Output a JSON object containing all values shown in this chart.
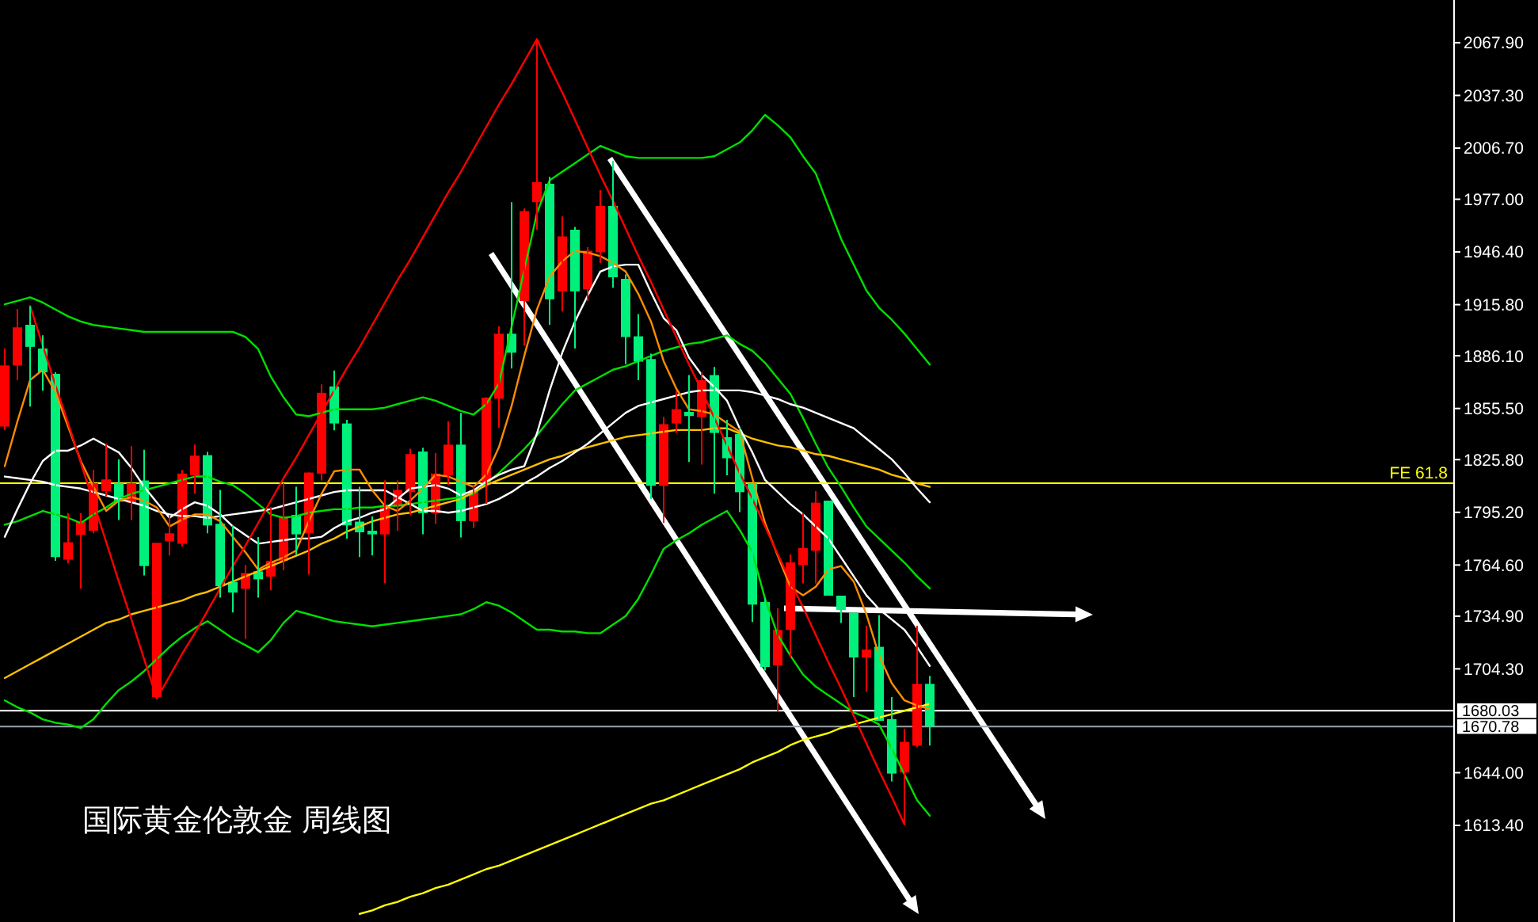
{
  "chart_data": {
    "type": "candlestick",
    "title": "国际黄金伦敦金 周线图",
    "categories": [
      null,
      null,
      null,
      null,
      null,
      null,
      null,
      null,
      null,
      null,
      null,
      null,
      null,
      null,
      null,
      null,
      null,
      null,
      null,
      null,
      null,
      null,
      null,
      null,
      null,
      null,
      null,
      null,
      null,
      null,
      null,
      null,
      null,
      null,
      null,
      null,
      null,
      null,
      null,
      null,
      null,
      null,
      null,
      null,
      null,
      null,
      null,
      null,
      null,
      null,
      null,
      null,
      null,
      null,
      null,
      null,
      null,
      null,
      null,
      null,
      null,
      null,
      null,
      null,
      null,
      null,
      null,
      null,
      null,
      null,
      null,
      null,
      null,
      null
    ],
    "ohlc": [
      [
        1845.0,
        1890.3,
        1842.8,
        1880.5
      ],
      [
        1880.5,
        1913.3,
        1871.9,
        1902.6
      ],
      [
        1904.1,
        1914.9,
        1856.6,
        1891.3
      ],
      [
        1890.3,
        1898.0,
        1865.8,
        1876.5
      ],
      [
        1875.6,
        1876.5,
        1767.1,
        1769.2
      ],
      [
        1767.7,
        1794.7,
        1765.5,
        1777.8
      ],
      [
        1782.1,
        1794.7,
        1750.8,
        1789.8
      ],
      [
        1784.5,
        1819.8,
        1783.0,
        1812.1
      ],
      [
        1807.5,
        1835.1,
        1804.5,
        1814.3
      ],
      [
        1812.1,
        1825.9,
        1790.7,
        1801.4
      ],
      [
        1800.8,
        1833.6,
        1790.7,
        1812.1
      ],
      [
        1813.7,
        1831.5,
        1758.5,
        1764.0
      ],
      [
        1687.9,
        1777.5,
        1687.0,
        1777.5
      ],
      [
        1778.4,
        1792.8,
        1770.1,
        1783.0
      ],
      [
        1776.9,
        1819.8,
        1775.3,
        1817.7
      ],
      [
        1816.7,
        1834.5,
        1806.0,
        1828.1
      ],
      [
        1828.4,
        1830.3,
        1783.0,
        1787.6
      ],
      [
        1788.5,
        1808.2,
        1745.6,
        1752.3
      ],
      [
        1754.8,
        1787.6,
        1737.0,
        1748.6
      ],
      [
        1750.8,
        1764.6,
        1721.7,
        1759.9
      ],
      [
        1760.9,
        1780.9,
        1745.6,
        1756.3
      ],
      [
        1757.9,
        1798.3,
        1749.9,
        1767.1
      ],
      [
        1767.1,
        1812.1,
        1761.5,
        1792.8
      ],
      [
        1793.7,
        1810.0,
        1770.7,
        1782.4
      ],
      [
        1783.0,
        1818.3,
        1759.1,
        1818.3
      ],
      [
        1817.7,
        1869.5,
        1813.7,
        1864.6
      ],
      [
        1868.3,
        1877.5,
        1842.8,
        1846.8
      ],
      [
        1846.8,
        1848.9,
        1779.9,
        1787.6
      ],
      [
        1789.8,
        1810.0,
        1769.2,
        1783.6
      ],
      [
        1784.5,
        1792.8,
        1770.1,
        1782.4
      ],
      [
        1782.4,
        1813.7,
        1753.9,
        1798.3
      ],
      [
        1799.0,
        1813.7,
        1784.5,
        1808.2
      ],
      [
        1806.9,
        1832.1,
        1793.7,
        1829.0
      ],
      [
        1830.5,
        1832.7,
        1782.4,
        1794.7
      ],
      [
        1794.7,
        1829.6,
        1788.5,
        1817.7
      ],
      [
        1816.7,
        1848.0,
        1811.2,
        1834.5
      ],
      [
        1834.5,
        1852.9,
        1780.6,
        1790.1
      ],
      [
        1790.1,
        1811.2,
        1786.1,
        1808.2
      ],
      [
        1812.1,
        1862.0,
        1800.2,
        1861.8
      ],
      [
        1861.2,
        1903.2,
        1844.3,
        1898.9
      ],
      [
        1898.9,
        1975.3,
        1878.7,
        1887.9
      ],
      [
        1917.9,
        1971.6,
        1891.9,
        1970.1
      ],
      [
        1975.3,
        2070.0,
        1959.3,
        1986.9
      ],
      [
        1986.0,
        1990.0,
        1904.1,
        1918.9
      ],
      [
        1923.5,
        1967.0,
        1911.8,
        1955.4
      ],
      [
        1959.3,
        1960.9,
        1890.3,
        1923.5
      ],
      [
        1924.7,
        1949.2,
        1917.9,
        1947.1
      ],
      [
        1946.2,
        1982.3,
        1940.0,
        1973.1
      ],
      [
        1973.1,
        1999.2,
        1925.6,
        1931.7
      ],
      [
        1930.8,
        1933.3,
        1881.1,
        1897.0
      ],
      [
        1897.4,
        1910.3,
        1871.9,
        1882.7
      ],
      [
        1884.2,
        1887.3,
        1802.9,
        1810.6
      ],
      [
        1810.6,
        1850.5,
        1789.1,
        1846.4
      ],
      [
        1846.8,
        1865.8,
        1841.3,
        1855.1
      ],
      [
        1853.5,
        1874.9,
        1824.4,
        1851.1
      ],
      [
        1850.5,
        1876.5,
        1822.9,
        1871.9
      ],
      [
        1874.9,
        1879.6,
        1806.0,
        1841.3
      ],
      [
        1838.8,
        1848.9,
        1816.7,
        1826.6
      ],
      [
        1840.7,
        1844.3,
        1795.3,
        1806.9
      ],
      [
        1812.1,
        1812.1,
        1731.5,
        1741.6
      ],
      [
        1743.1,
        1745.6,
        1703.3,
        1705.4
      ],
      [
        1706.3,
        1739.5,
        1679.4,
        1726.9
      ],
      [
        1726.9,
        1770.7,
        1710.9,
        1766.1
      ],
      [
        1764.6,
        1794.7,
        1753.9,
        1774.4
      ],
      [
        1772.9,
        1807.5,
        1753.9,
        1800.8
      ],
      [
        1802.0,
        1802.0,
        1746.8,
        1746.8
      ],
      [
        1746.8,
        1746.8,
        1730.9,
        1738.5
      ],
      [
        1736.9,
        1736.9,
        1687.9,
        1710.9
      ],
      [
        1710.9,
        1729.3,
        1691.0,
        1715.5
      ],
      [
        1717.1,
        1735.5,
        1674.1,
        1674.1
      ],
      [
        1675.1,
        1687.9,
        1638.9,
        1643.5
      ],
      [
        1644.1,
        1669.5,
        1614.3,
        1661.9
      ],
      [
        1659.7,
        1729.3,
        1658.8,
        1695.6
      ],
      [
        1695.6,
        1700.2,
        1659.7,
        1670.8
      ]
    ],
    "colors": [
      "#ff0000",
      "#ff0000",
      "#00f07c",
      "#00f07c",
      "#00f07c",
      "#ff0000",
      "#ff0000",
      "#ff0000",
      "#ff0000",
      "#00f07c",
      "#ff0000",
      "#00f07c",
      "#ff0000",
      "#ff0000",
      "#ff0000",
      "#ff0000",
      "#00f07c",
      "#00f07c",
      "#00f07c",
      "#ff0000",
      "#00f07c",
      "#ff0000",
      "#ff0000",
      "#00f07c",
      "#ff0000",
      "#ff0000",
      "#00f07c",
      "#00f07c",
      "#00f07c",
      "#00f07c",
      "#ff0000",
      "#ff0000",
      "#ff0000",
      "#00f07c",
      "#ff0000",
      "#ff0000",
      "#00f07c",
      "#ff0000",
      "#ff0000",
      "#ff0000",
      "#00f07c",
      "#ff0000",
      "#ff0000",
      "#00f07c",
      "#ff0000",
      "#00f07c",
      "#ff0000",
      "#ff0000",
      "#00f07c",
      "#00f07c",
      "#00f07c",
      "#00f07c",
      "#ff0000",
      "#ff0000",
      "#00f07c",
      "#ff0000",
      "#00f07c",
      "#00f07c",
      "#00f07c",
      "#00f07c",
      "#00f07c",
      "#ff0000",
      "#ff0000",
      "#ff0000",
      "#ff0000",
      "#00f07c",
      "#00f07c",
      "#00f07c",
      "#ff0000",
      "#00f07c",
      "#00f07c",
      "#ff0000",
      "#ff0000",
      "#00f07c"
    ],
    "series": [
      {
        "type": "line",
        "color": "#00e000",
        "values": [
          1916,
          1918,
          1920,
          1917,
          1913,
          1909,
          1906,
          1904,
          1903,
          1902,
          1901,
          1900,
          1900,
          1900,
          1900,
          1900,
          1900,
          1900,
          1900,
          1897,
          1890,
          1874,
          1862,
          1852,
          1851,
          1853,
          1855,
          1855,
          1855,
          1855,
          1856,
          1858,
          1860,
          1862,
          1860,
          1857,
          1854,
          1852,
          1858,
          1870,
          1903,
          1936,
          1969,
          1988,
          1993,
          1998,
          2003,
          2008,
          2005,
          2002,
          2001,
          2001,
          2001,
          2001,
          2001,
          2001,
          2002,
          2006,
          2010,
          2017,
          2026,
          2020,
          2013,
          2002,
          1992,
          1973,
          1954,
          1939,
          1924,
          1914,
          1907,
          1899,
          1890,
          1881
        ]
      },
      {
        "type": "line",
        "color": "#00e000",
        "values": [
          1788,
          1790,
          1793,
          1796,
          1794,
          1792,
          1789,
          1794,
          1798,
          1803,
          1806,
          1808,
          1810,
          1812,
          1814,
          1816,
          1816,
          1813,
          1811,
          1806,
          1800,
          1794,
          1792,
          1793,
          1795,
          1796,
          1797,
          1797,
          1798,
          1798,
          1799,
          1799,
          1800,
          1801,
          1802,
          1803,
          1804,
          1806,
          1812,
          1818,
          1825,
          1832,
          1840,
          1849,
          1858,
          1866,
          1870,
          1874,
          1878,
          1880,
          1883,
          1886,
          1889,
          1891,
          1893,
          1894,
          1896,
          1898,
          1893,
          1889,
          1882,
          1873,
          1864,
          1850,
          1835,
          1821,
          1810,
          1798,
          1787,
          1780,
          1773,
          1766,
          1758,
          1751
        ]
      },
      {
        "type": "line",
        "color": "#00e000",
        "values": [
          1686,
          1682,
          1679,
          1675,
          1673,
          1672,
          1670,
          1675,
          1684,
          1692,
          1697,
          1703,
          1710,
          1717,
          1723,
          1728,
          1732,
          1727,
          1722,
          1718,
          1714,
          1721,
          1731,
          1738,
          1736,
          1734,
          1732,
          1731,
          1730,
          1729,
          1730,
          1731,
          1732,
          1733,
          1734,
          1735,
          1736,
          1739,
          1743,
          1741,
          1737,
          1732,
          1727,
          1727,
          1726,
          1726,
          1725,
          1725,
          1730,
          1735,
          1745,
          1759,
          1774,
          1779,
          1783,
          1788,
          1792,
          1796,
          1785,
          1772,
          1745,
          1724,
          1712,
          1701,
          1694,
          1689,
          1684,
          1679,
          1676,
          1672,
          1658,
          1643,
          1628,
          1619
        ]
      },
      {
        "type": "line",
        "color": "#ffc000",
        "values": [
          1699,
          1703,
          1707,
          1711,
          1715,
          1719,
          1723,
          1727,
          1731,
          1733,
          1736,
          1738,
          1740,
          1742,
          1744,
          1747,
          1749,
          1752,
          1755,
          1758,
          1761,
          1764,
          1767,
          1770,
          1773,
          1777,
          1780,
          1784,
          1787,
          1790,
          1792,
          1794,
          1795,
          1797,
          1799,
          1801,
          1803,
          1807,
          1811,
          1814,
          1817,
          1820,
          1823,
          1826,
          1828,
          1831,
          1833,
          1835,
          1837,
          1839,
          1840,
          1841,
          1842,
          1843,
          1843,
          1843,
          1844,
          1844,
          1841,
          1838,
          1836,
          1834,
          1833,
          1831,
          1829,
          1828,
          1826,
          1824,
          1822,
          1820,
          1817,
          1815,
          1812,
          1810
        ]
      },
      {
        "type": "line",
        "color": "#ffff00",
        "values": [
          null,
          null,
          null,
          null,
          null,
          null,
          null,
          null,
          null,
          null,
          null,
          null,
          null,
          null,
          null,
          null,
          null,
          null,
          null,
          null,
          null,
          null,
          null,
          null,
          null,
          null,
          null,
          null,
          1562,
          1564,
          1567,
          1569,
          1572,
          1574,
          1577,
          1579,
          1582,
          1585,
          1588,
          1590,
          1593,
          1596,
          1599,
          1602,
          1605,
          1608,
          1611,
          1614,
          1617,
          1620,
          1623,
          1626,
          1628,
          1631,
          1634,
          1637,
          1640,
          1643,
          1646,
          1650,
          1653,
          1656,
          1660,
          1663,
          1665,
          1667,
          1670,
          1672,
          1674,
          1676,
          1678,
          1680,
          1682,
          1684
        ]
      },
      {
        "type": "line",
        "color": "#ffffff",
        "values": [
          1781,
          1797,
          1812,
          1825,
          1831,
          1831,
          1834,
          1838,
          1834,
          1830,
          1821,
          1810,
          1801,
          1792,
          1797,
          1801,
          1799,
          1794,
          1787,
          1782,
          1777,
          1778,
          1779,
          1780,
          1780,
          1781,
          1786,
          1790,
          1792,
          1795,
          1797,
          1803,
          1809,
          1810,
          1811,
          1809,
          1805,
          1808,
          1813,
          1817,
          1820,
          1822,
          1841,
          1866,
          1888,
          1906,
          1921,
          1935,
          1938,
          1939,
          1939,
          1923,
          1908,
          1901,
          1885,
          1875,
          1868,
          1860,
          1844,
          1830,
          1814,
          1807,
          1800,
          1794,
          1787,
          1780,
          1769,
          1758,
          1747,
          1739,
          1733,
          1727,
          1717,
          1706
        ]
      },
      {
        "type": "line",
        "color": "#ffffff",
        "values": [
          1816,
          1815,
          1814,
          1813,
          1811,
          1810,
          1809,
          1807,
          1805,
          1803,
          1801,
          1799,
          1796,
          1794,
          1793,
          1793,
          1792,
          1793,
          1794,
          1795,
          1796,
          1797,
          1799,
          1801,
          1803,
          1805,
          1807,
          1808,
          1808,
          1808,
          1808,
          1804,
          1800,
          1796,
          1796,
          1795,
          1796,
          1798,
          1800,
          1803,
          1807,
          1812,
          1816,
          1821,
          1825,
          1830,
          1835,
          1841,
          1847,
          1853,
          1857,
          1859,
          1861,
          1863,
          1865,
          1866,
          1866,
          1866,
          1866,
          1865,
          1863,
          1861,
          1858,
          1856,
          1853,
          1850,
          1847,
          1844,
          1838,
          1832,
          1826,
          1818,
          1809,
          1801
        ]
      },
      {
        "type": "line",
        "color": "#ff8c00",
        "values": [
          1822,
          1848,
          1872,
          1878,
          1865,
          1845,
          1825,
          1810,
          1796,
          1802,
          1804,
          1802,
          1798,
          1787,
          1791,
          1794,
          1794,
          1790,
          1781,
          1772,
          1762,
          1766,
          1769,
          1773,
          1790,
          1806,
          1819,
          1820,
          1820,
          1808,
          1799,
          1796,
          1802,
          1809,
          1817,
          1816,
          1813,
          1810,
          1817,
          1833,
          1857,
          1886,
          1913,
          1932,
          1941,
          1947,
          1946,
          1944,
          1940,
          1935,
          1922,
          1906,
          1883,
          1867,
          1855,
          1854,
          1852,
          1847,
          1842,
          1815,
          1789,
          1770,
          1752,
          1747,
          1752,
          1762,
          1764,
          1755,
          1736,
          1712,
          1696,
          1686,
          1683,
          1681
        ]
      },
      {
        "type": "line",
        "color": "#ff0000",
        "values": [
          null,
          null,
          1915,
          1892,
          1869,
          1847,
          1824,
          1801,
          1778,
          1755,
          1733,
          1710,
          1687,
          1700,
          1713,
          1725,
          1738,
          1751,
          1764,
          1776,
          1789,
          1802,
          1815,
          1827,
          1840,
          1853,
          1866,
          1879,
          1891,
          1904,
          1917,
          1930,
          1942,
          1955,
          1968,
          1981,
          1993,
          2006,
          2019,
          2032,
          2044,
          2057,
          2070,
          2054,
          2039,
          2023,
          2007,
          1991,
          1976,
          1960,
          1944,
          1929,
          1913,
          1897,
          1881,
          1866,
          1850,
          1834,
          1818,
          1803,
          1787,
          1771,
          1755,
          1740,
          1724,
          1708,
          1693,
          1677,
          1661,
          1645,
          1630,
          1614,
          null,
          null
        ]
      }
    ],
    "ylim": [
      1557.3,
      2092.7
    ],
    "yticks": [
      {
        "value": 2067.9,
        "label": "2067.90"
      },
      {
        "value": 2037.3,
        "label": "2037.30"
      },
      {
        "value": 2006.7,
        "label": "2006.70"
      },
      {
        "value": 1977,
        "label": "1977.00"
      },
      {
        "value": 1946.4,
        "label": "1946.40"
      },
      {
        "value": 1915.8,
        "label": "1915.80"
      },
      {
        "value": 1886.1,
        "label": "1886.10"
      },
      {
        "value": 1855.5,
        "label": "1855.50"
      },
      {
        "value": 1825.8,
        "label": "1825.80"
      },
      {
        "value": 1795.2,
        "label": "1795.20"
      },
      {
        "value": 1764.6,
        "label": "1764.60"
      },
      {
        "value": 1734.9,
        "label": "1734.90"
      },
      {
        "value": 1704.3,
        "label": "1704.30"
      },
      {
        "value": 1644,
        "label": "1644.00"
      },
      {
        "value": 1613.4,
        "label": "1613.40"
      }
    ],
    "tick_labels": "y",
    "ref_lines": [
      {
        "axis": "y",
        "value": 1812.1,
        "label": "FE 61.8",
        "color": "#ffff00"
      },
      {
        "axis": "y",
        "value": 1680.03,
        "label": "1680.03",
        "color": "#ffffff"
      },
      {
        "axis": "y",
        "value": 1670.78,
        "label": "1670.78",
        "color": "#9aa4ae"
      }
    ]
  }
}
